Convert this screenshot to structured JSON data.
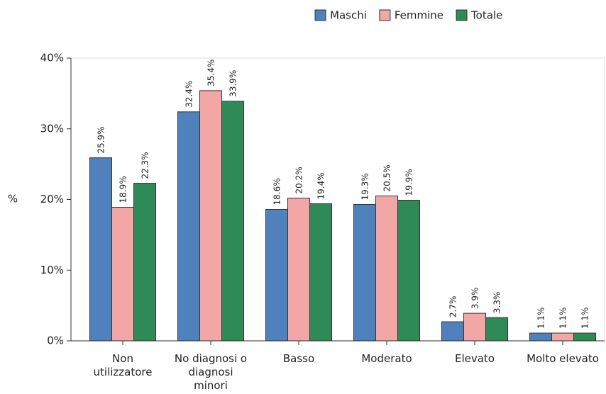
{
  "chart_data": {
    "type": "bar",
    "y_label": "%",
    "categories": [
      "Non utilizzatore",
      "No diagnosi o diagnosi minori",
      "Basso",
      "Moderato",
      "Elevato",
      "Molto elevato"
    ],
    "series": [
      {
        "name": "Maschi",
        "color": "#4f81bd",
        "values": [
          25.9,
          32.4,
          18.6,
          19.3,
          2.7,
          1.1
        ],
        "value_labels": [
          "25.9%",
          "32.4%",
          "18.6%",
          "19.3%",
          "2.7%",
          "1.1%"
        ]
      },
      {
        "name": "Femmine",
        "color": "#f2a6a6",
        "values": [
          18.9,
          35.4,
          20.2,
          20.5,
          3.9,
          1.1
        ],
        "value_labels": [
          "18.9%",
          "35.4%",
          "20.2%",
          "20.5%",
          "3.9%",
          "1.1%"
        ]
      },
      {
        "name": "Totale",
        "color": "#2e8b57",
        "values": [
          22.3,
          33.9,
          19.4,
          19.9,
          3.3,
          1.1
        ],
        "value_labels": [
          "22.3%",
          "33.9%",
          "19.4%",
          "19.9%",
          "3.3%",
          "1.1%"
        ]
      }
    ],
    "ylim": [
      0,
      40
    ],
    "yticks": [
      {
        "value": 0,
        "label": "0%"
      },
      {
        "value": 10,
        "label": "10%"
      },
      {
        "value": 20,
        "label": "20%"
      },
      {
        "value": 30,
        "label": "30%"
      },
      {
        "value": 40,
        "label": "40%"
      }
    ],
    "legend": "top"
  }
}
